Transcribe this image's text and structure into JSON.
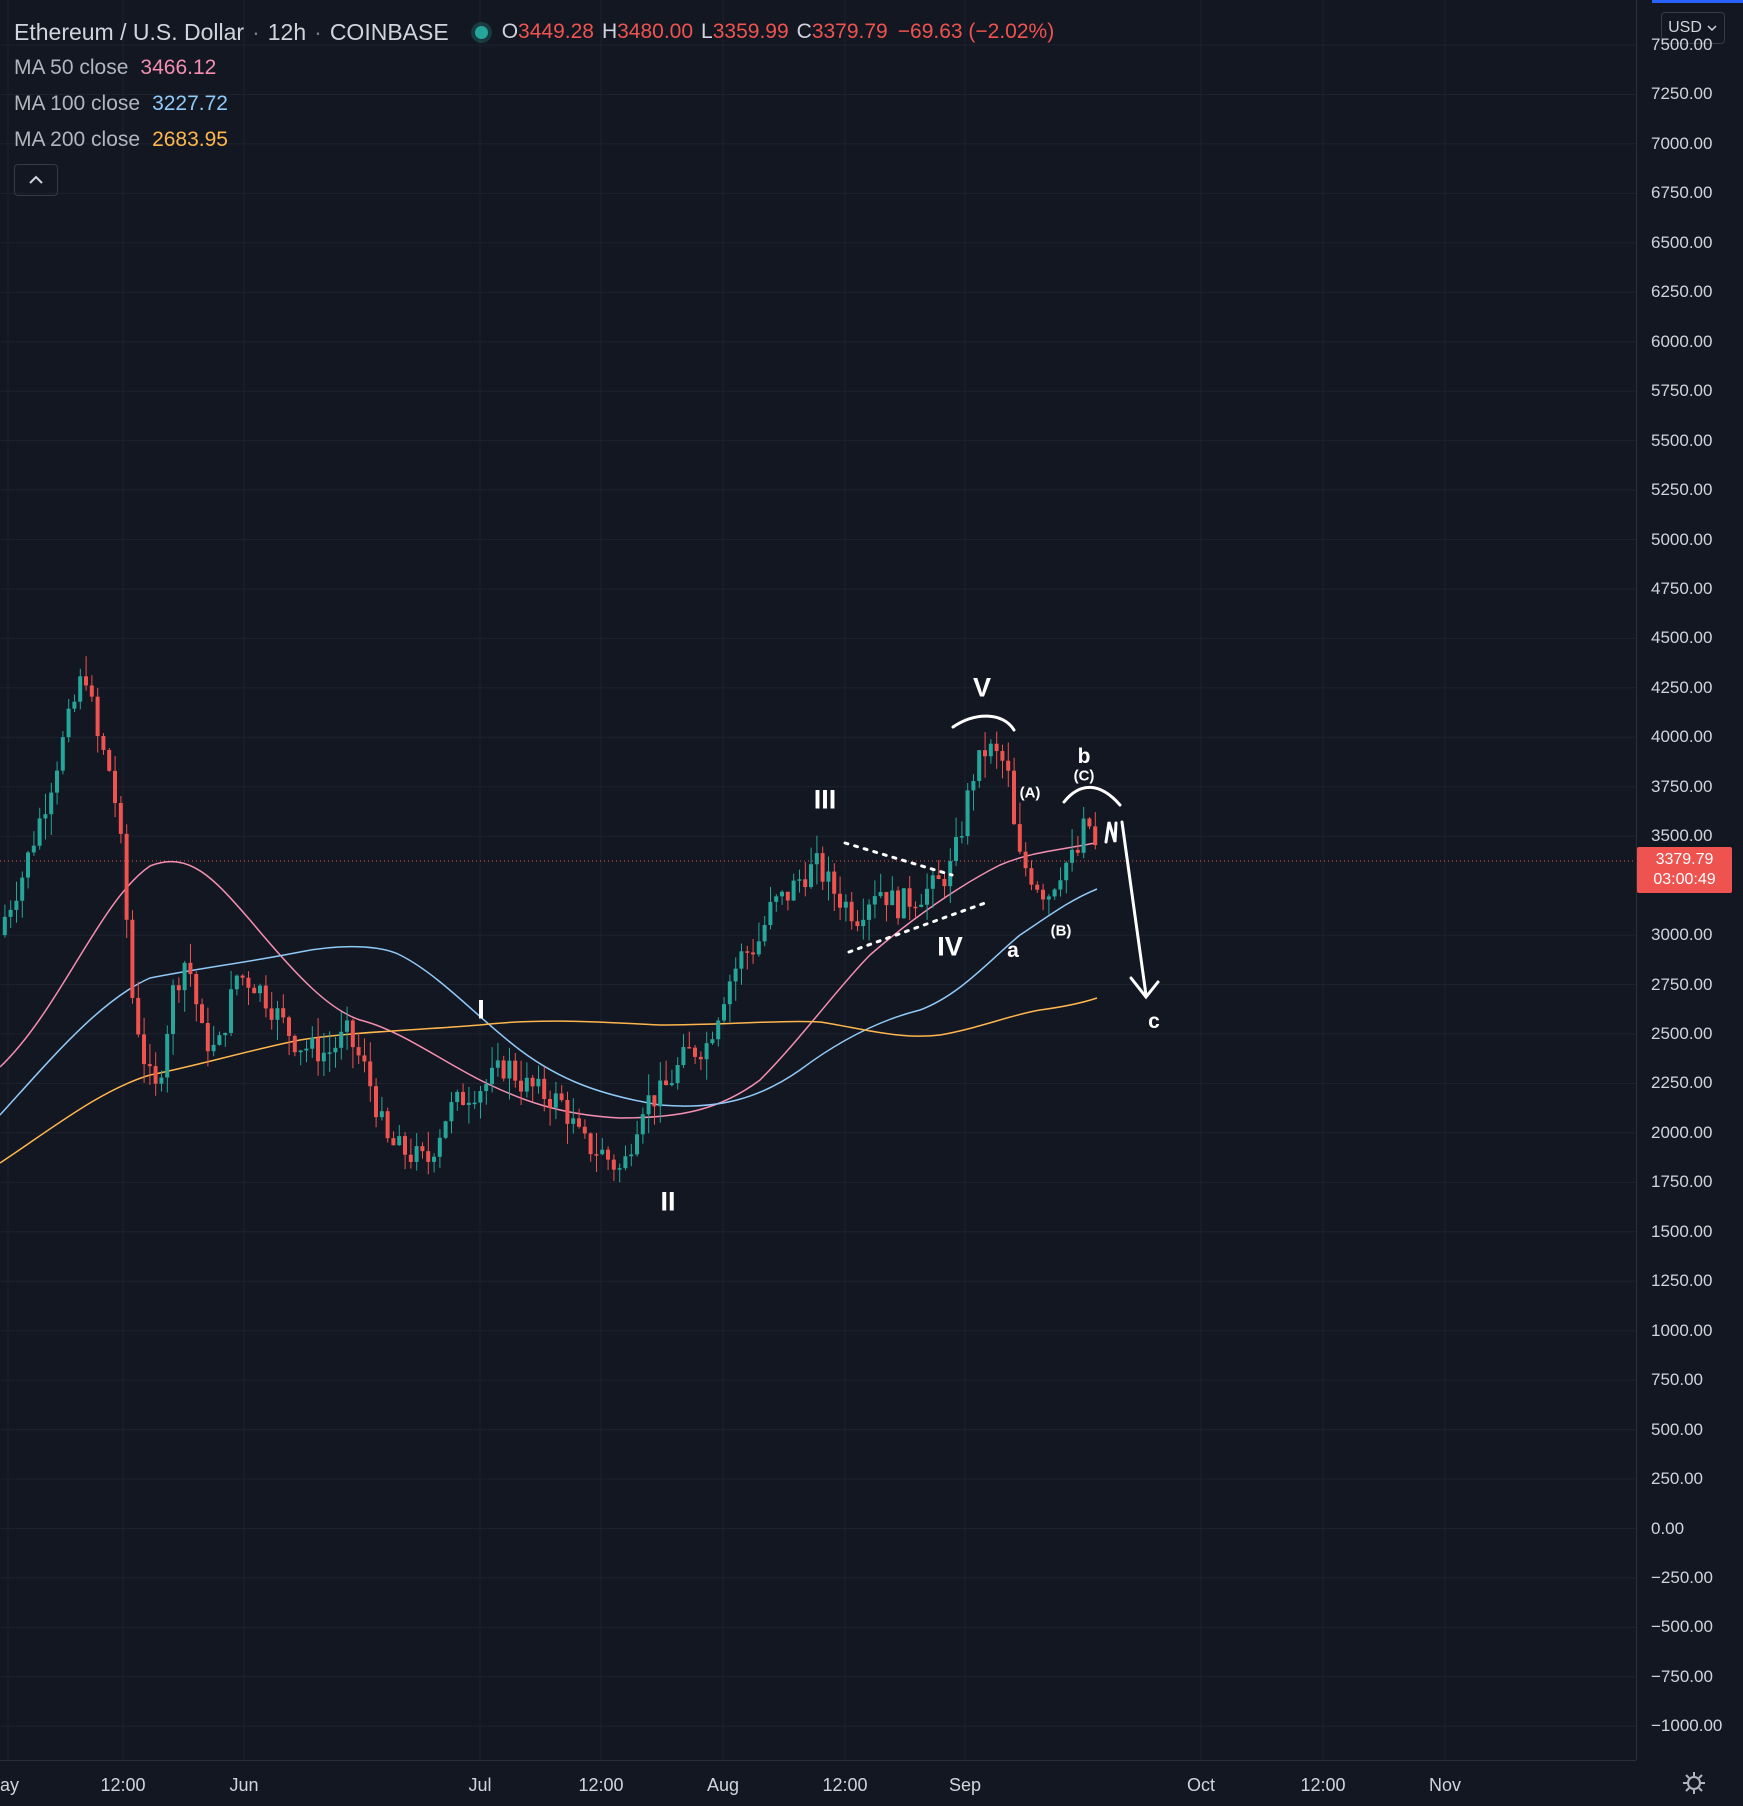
{
  "header": {
    "symbol_title": "Ethereum / U.S. Dollar",
    "separator": "·",
    "interval": "12h",
    "exchange": "COINBASE",
    "ohlc": {
      "o_label": "O",
      "o_value": "3449.28",
      "h_label": "H",
      "h_value": "3480.00",
      "l_label": "L",
      "l_value": "3359.99",
      "c_label": "C",
      "c_value": "3379.79",
      "change": "−69.63 (−2.02%)"
    }
  },
  "indicators": [
    {
      "name": "MA 50 close",
      "value": "3466.12",
      "color": "#f48fb1"
    },
    {
      "name": "MA 100 close",
      "value": "3227.72",
      "color": "#90caf9"
    },
    {
      "name": "MA 200 close",
      "value": "2683.95",
      "color": "#ffb74d"
    }
  ],
  "price_axis": {
    "currency": "USD",
    "ticks": [
      "7500.00",
      "7250.00",
      "7000.00",
      "6750.00",
      "6500.00",
      "6250.00",
      "6000.00",
      "5750.00",
      "5500.00",
      "5250.00",
      "5000.00",
      "4750.00",
      "4500.00",
      "4250.00",
      "4000.00",
      "3750.00",
      "3500.00",
      "3000.00",
      "2750.00",
      "2500.00",
      "2250.00",
      "2000.00",
      "1750.00",
      "1500.00",
      "1250.00",
      "1000.00",
      "750.00",
      "500.00",
      "250.00",
      "0.00",
      "−250.00",
      "−500.00",
      "−750.00",
      "−1000.00"
    ],
    "last_price": "3379.79",
    "countdown": "03:00:49"
  },
  "time_axis": {
    "labels": [
      "ay",
      "12:00",
      "Jun",
      "Jul",
      "12:00",
      "Aug",
      "12:00",
      "Sep",
      "Oct",
      "12:00",
      "Nov"
    ]
  },
  "annotations": {
    "wave_I": "I",
    "wave_II": "II",
    "wave_III": "III",
    "wave_IV": "IV",
    "wave_V": "V",
    "a": "a",
    "b": "b",
    "c": "c",
    "A": "(A)",
    "B": "(B)",
    "C": "(C)"
  },
  "colors": {
    "background": "#131722",
    "up": "#26a69a",
    "down": "#ef5350",
    "grid": "#1e222d"
  },
  "chart_data": {
    "type": "candlestick",
    "title": "Ethereum / U.S. Dollar",
    "ylim": [
      -1000,
      7500
    ],
    "series": [
      {
        "name": "MA 50 close",
        "last_value": 3466.12
      },
      {
        "name": "MA 100 close",
        "last_value": 3227.72
      },
      {
        "name": "MA 200 close",
        "last_value": 2683.95
      }
    ],
    "last": {
      "open": 3449.28,
      "high": 3480.0,
      "low": 3359.99,
      "close": 3379.79
    }
  }
}
